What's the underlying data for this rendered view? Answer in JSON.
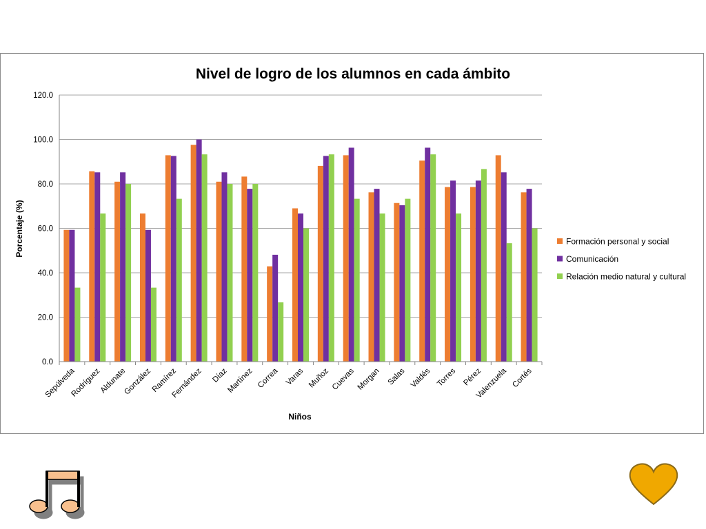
{
  "chart_data": {
    "type": "bar",
    "title": "Nivel de logro de los alumnos en cada ámbito",
    "xlabel": "Niños",
    "ylabel": "Porcentaje (%)",
    "ylim": [
      0,
      120
    ],
    "yticks": [
      "0.0",
      "20.0",
      "40.0",
      "60.0",
      "80.0",
      "100.0",
      "120.0"
    ],
    "grid": true,
    "legend_position": "right",
    "categories": [
      "Sepúlveda",
      "Rodríguez",
      "Aldunate",
      "González",
      "Ramírez",
      "Fernández",
      "Díaz",
      "Martínez",
      "Correa",
      "Varas",
      "Muñoz",
      "Cuevas",
      "Morgan",
      "Salas",
      "Valdés",
      "Torres",
      "Pérez",
      "Valenzuela",
      "Cortés"
    ],
    "series": [
      {
        "name": "Formación personal y social",
        "color": "#ed7d31",
        "values": [
          59.3,
          85.7,
          81.0,
          66.7,
          92.9,
          97.6,
          81.0,
          83.3,
          42.9,
          69.0,
          88.1,
          92.9,
          76.2,
          71.4,
          90.5,
          78.6,
          78.6,
          92.9,
          76.2
        ]
      },
      {
        "name": "Comunicación",
        "color": "#7030a0",
        "values": [
          59.3,
          85.2,
          85.2,
          59.3,
          92.6,
          100.0,
          85.2,
          77.8,
          48.1,
          66.7,
          92.6,
          96.3,
          77.8,
          70.4,
          96.3,
          81.5,
          81.5,
          85.2,
          77.8
        ]
      },
      {
        "name": "Relación medio natural y cultural",
        "color": "#92d050",
        "values": [
          33.3,
          66.7,
          80.0,
          33.3,
          73.3,
          93.3,
          80.0,
          80.0,
          26.7,
          60.0,
          93.3,
          73.3,
          66.7,
          73.3,
          93.3,
          66.7,
          86.7,
          53.3,
          60.0
        ]
      }
    ]
  },
  "decor": {
    "music_icon": "music-notes-icon",
    "heart_icon": "heart-icon",
    "heart_color": "#f0a800"
  }
}
